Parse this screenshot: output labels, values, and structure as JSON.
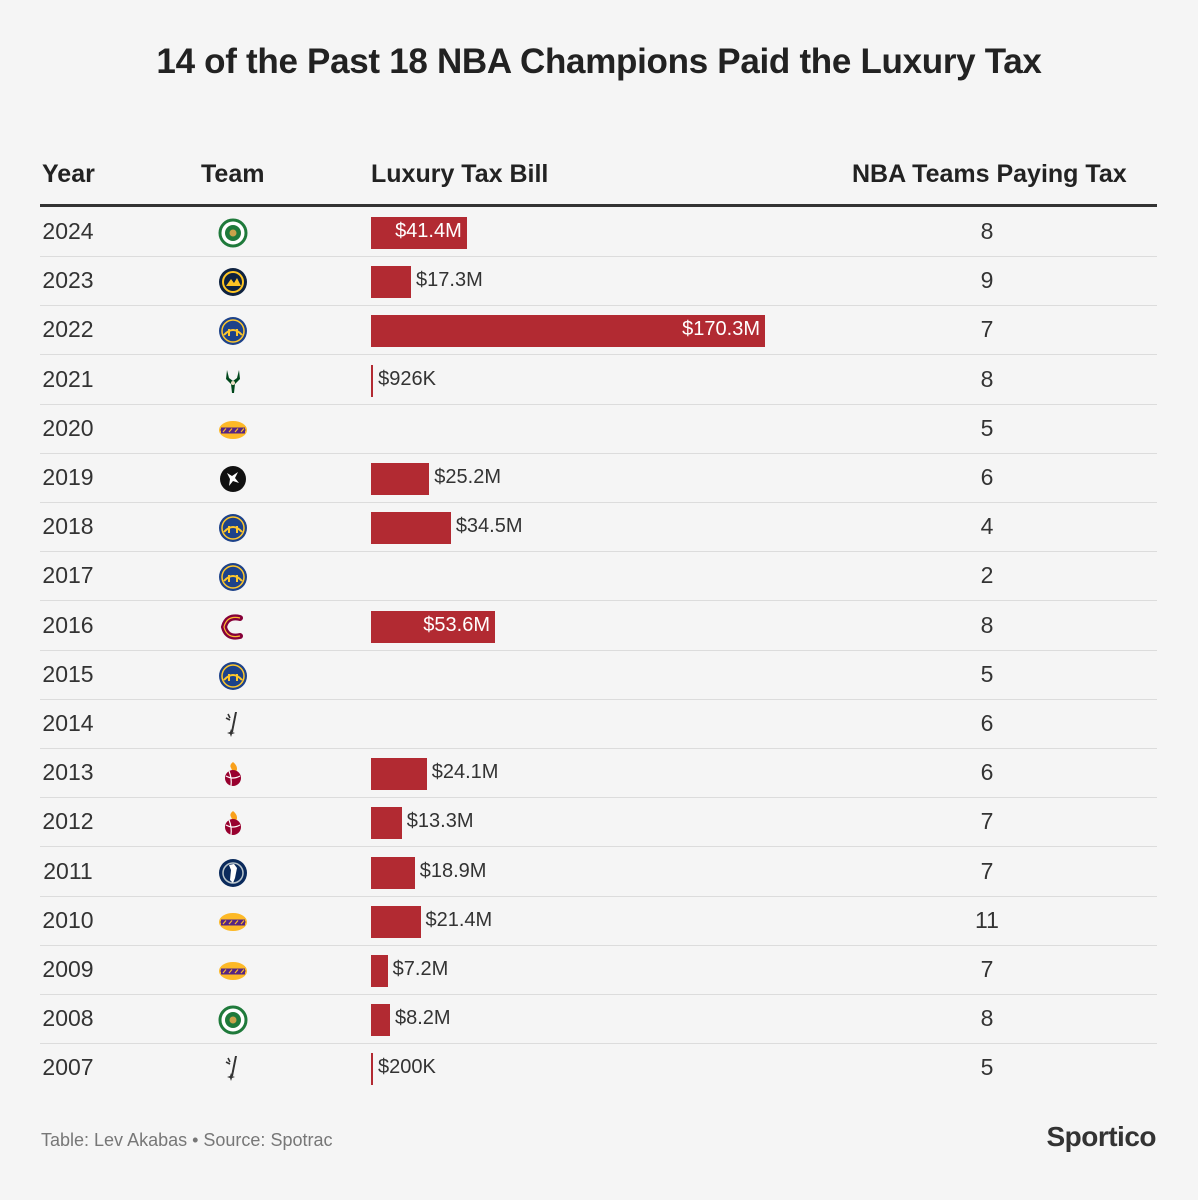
{
  "title": "14 of the Past 18 NBA Champions Paid the Luxury Tax",
  "headers": {
    "year": "Year",
    "team": "Team",
    "bill": "Luxury Tax Bill",
    "count": "NBA Teams Paying Tax"
  },
  "chart_data": {
    "type": "table",
    "title": "14 of the Past 18 NBA Champions Paid the Luxury Tax",
    "columns": [
      "Year",
      "Team",
      "Luxury Tax Bill",
      "NBA Teams Paying Tax"
    ],
    "value_unit": "$M",
    "max_value": 170.3,
    "rows": [
      {
        "year": "2024",
        "team_icon": "celtics-logo-icon",
        "tax_value": 41.4,
        "tax_label": "$41.4M",
        "teams_paying": "8"
      },
      {
        "year": "2023",
        "team_icon": "nuggets-logo-icon",
        "tax_value": 17.3,
        "tax_label": "$17.3M",
        "teams_paying": "9"
      },
      {
        "year": "2022",
        "team_icon": "warriors-logo-icon",
        "tax_value": 170.3,
        "tax_label": "$170.3M",
        "teams_paying": "7"
      },
      {
        "year": "2021",
        "team_icon": "bucks-logo-icon",
        "tax_value": 0.926,
        "tax_label": "$926K",
        "teams_paying": "8"
      },
      {
        "year": "2020",
        "team_icon": "lakers-logo-icon",
        "tax_value": 0,
        "tax_label": "",
        "teams_paying": "5"
      },
      {
        "year": "2019",
        "team_icon": "raptors-logo-icon",
        "tax_value": 25.2,
        "tax_label": "$25.2M",
        "teams_paying": "6"
      },
      {
        "year": "2018",
        "team_icon": "warriors-logo-icon",
        "tax_value": 34.5,
        "tax_label": "$34.5M",
        "teams_paying": "4"
      },
      {
        "year": "2017",
        "team_icon": "warriors-logo-icon",
        "tax_value": 0,
        "tax_label": "",
        "teams_paying": "2"
      },
      {
        "year": "2016",
        "team_icon": "cavaliers-logo-icon",
        "tax_value": 53.6,
        "tax_label": "$53.6M",
        "teams_paying": "8"
      },
      {
        "year": "2015",
        "team_icon": "warriors-logo-icon",
        "tax_value": 0,
        "tax_label": "",
        "teams_paying": "5"
      },
      {
        "year": "2014",
        "team_icon": "spurs-logo-icon",
        "tax_value": 0,
        "tax_label": "",
        "teams_paying": "6"
      },
      {
        "year": "2013",
        "team_icon": "heat-logo-icon",
        "tax_value": 24.1,
        "tax_label": "$24.1M",
        "teams_paying": "6"
      },
      {
        "year": "2012",
        "team_icon": "heat-logo-icon",
        "tax_value": 13.3,
        "tax_label": "$13.3M",
        "teams_paying": "7"
      },
      {
        "year": "2011",
        "team_icon": "mavericks-logo-icon",
        "tax_value": 18.9,
        "tax_label": "$18.9M",
        "teams_paying": "7"
      },
      {
        "year": "2010",
        "team_icon": "lakers-logo-icon",
        "tax_value": 21.4,
        "tax_label": "$21.4M",
        "teams_paying": "11"
      },
      {
        "year": "2009",
        "team_icon": "lakers-logo-icon",
        "tax_value": 7.2,
        "tax_label": "$7.2M",
        "teams_paying": "7"
      },
      {
        "year": "2008",
        "team_icon": "celtics-logo-icon",
        "tax_value": 8.2,
        "tax_label": "$8.2M",
        "teams_paying": "8"
      },
      {
        "year": "2007",
        "team_icon": "spurs-logo-icon",
        "tax_value": 0.2,
        "tax_label": "$200K",
        "teams_paying": "5"
      }
    ]
  },
  "colors": {
    "bar": "#b22a32",
    "background": "#f5f5f5",
    "celtics": "#1f7a3b",
    "nuggets": "#0e2240",
    "nuggets_accent": "#fec524",
    "warriors": "#1d428a",
    "warriors_accent": "#ffc72c",
    "bucks": "#00471b",
    "lakers": "#552583",
    "lakers_accent": "#fdb927",
    "raptors": "#111111",
    "cavaliers": "#860038",
    "cavaliers_accent": "#fdbb30",
    "spurs": "#333333",
    "heat": "#98002e",
    "heat_accent": "#f9a01b",
    "mavericks": "#0a2a5c",
    "mavericks_accent": "#b8c4ca"
  },
  "footer": {
    "credit": "Table: Lev Akabas • Source: Spotrac",
    "brand": "Sportico"
  }
}
